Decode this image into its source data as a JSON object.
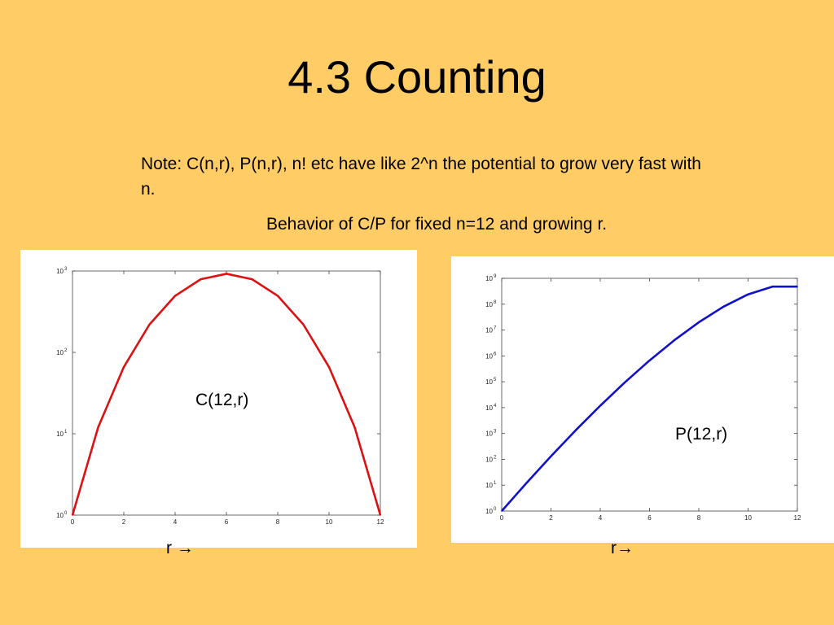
{
  "slide": {
    "title": "4.3 Counting",
    "note": "Note: C(n,r), P(n,r), n! etc have like 2^n the potential to grow very fast with n.",
    "caption": "Behavior of C/P for fixed n=12 and growing r."
  },
  "colors": {
    "background": "#FFCC66",
    "c_series": "#DD1111",
    "p_series": "#1111CC"
  },
  "chart_data": [
    {
      "type": "line",
      "yscale": "log",
      "annotation": "C(12,r)",
      "xlabel": "r →",
      "x": [
        0,
        1,
        2,
        3,
        4,
        5,
        6,
        7,
        8,
        9,
        10,
        11,
        12
      ],
      "series": [
        {
          "values": [
            1,
            12,
            66,
            220,
            495,
            792,
            924,
            792,
            495,
            220,
            66,
            12,
            1
          ]
        }
      ],
      "xlim": [
        0,
        12
      ],
      "ylim": [
        1,
        1000
      ],
      "xticks": [
        "0",
        "2",
        "4",
        "6",
        "8",
        "10",
        "12"
      ],
      "yticks": [
        "10",
        "10",
        "10",
        "10"
      ],
      "ytick_exponents": [
        "0",
        "1",
        "2",
        "3"
      ],
      "grid": false
    },
    {
      "type": "line",
      "yscale": "log",
      "annotation": "P(12,r)",
      "xlabel": "r→",
      "x": [
        0,
        1,
        2,
        3,
        4,
        5,
        6,
        7,
        8,
        9,
        10,
        11,
        12
      ],
      "series": [
        {
          "values": [
            1,
            12,
            132,
            1320,
            11880,
            95040,
            665280,
            3991680,
            19958400,
            79833600,
            239500800,
            479001600,
            479001600
          ]
        }
      ],
      "xlim": [
        0,
        12
      ],
      "ylim": [
        1,
        1000000000
      ],
      "xticks": [
        "0",
        "2",
        "4",
        "6",
        "8",
        "10",
        "12"
      ],
      "yticks": [
        "10",
        "10",
        "10",
        "10",
        "10",
        "10",
        "10",
        "10",
        "10",
        "10"
      ],
      "ytick_exponents": [
        "0",
        "1",
        "2",
        "3",
        "4",
        "5",
        "6",
        "7",
        "8",
        "9"
      ],
      "grid": false
    }
  ]
}
